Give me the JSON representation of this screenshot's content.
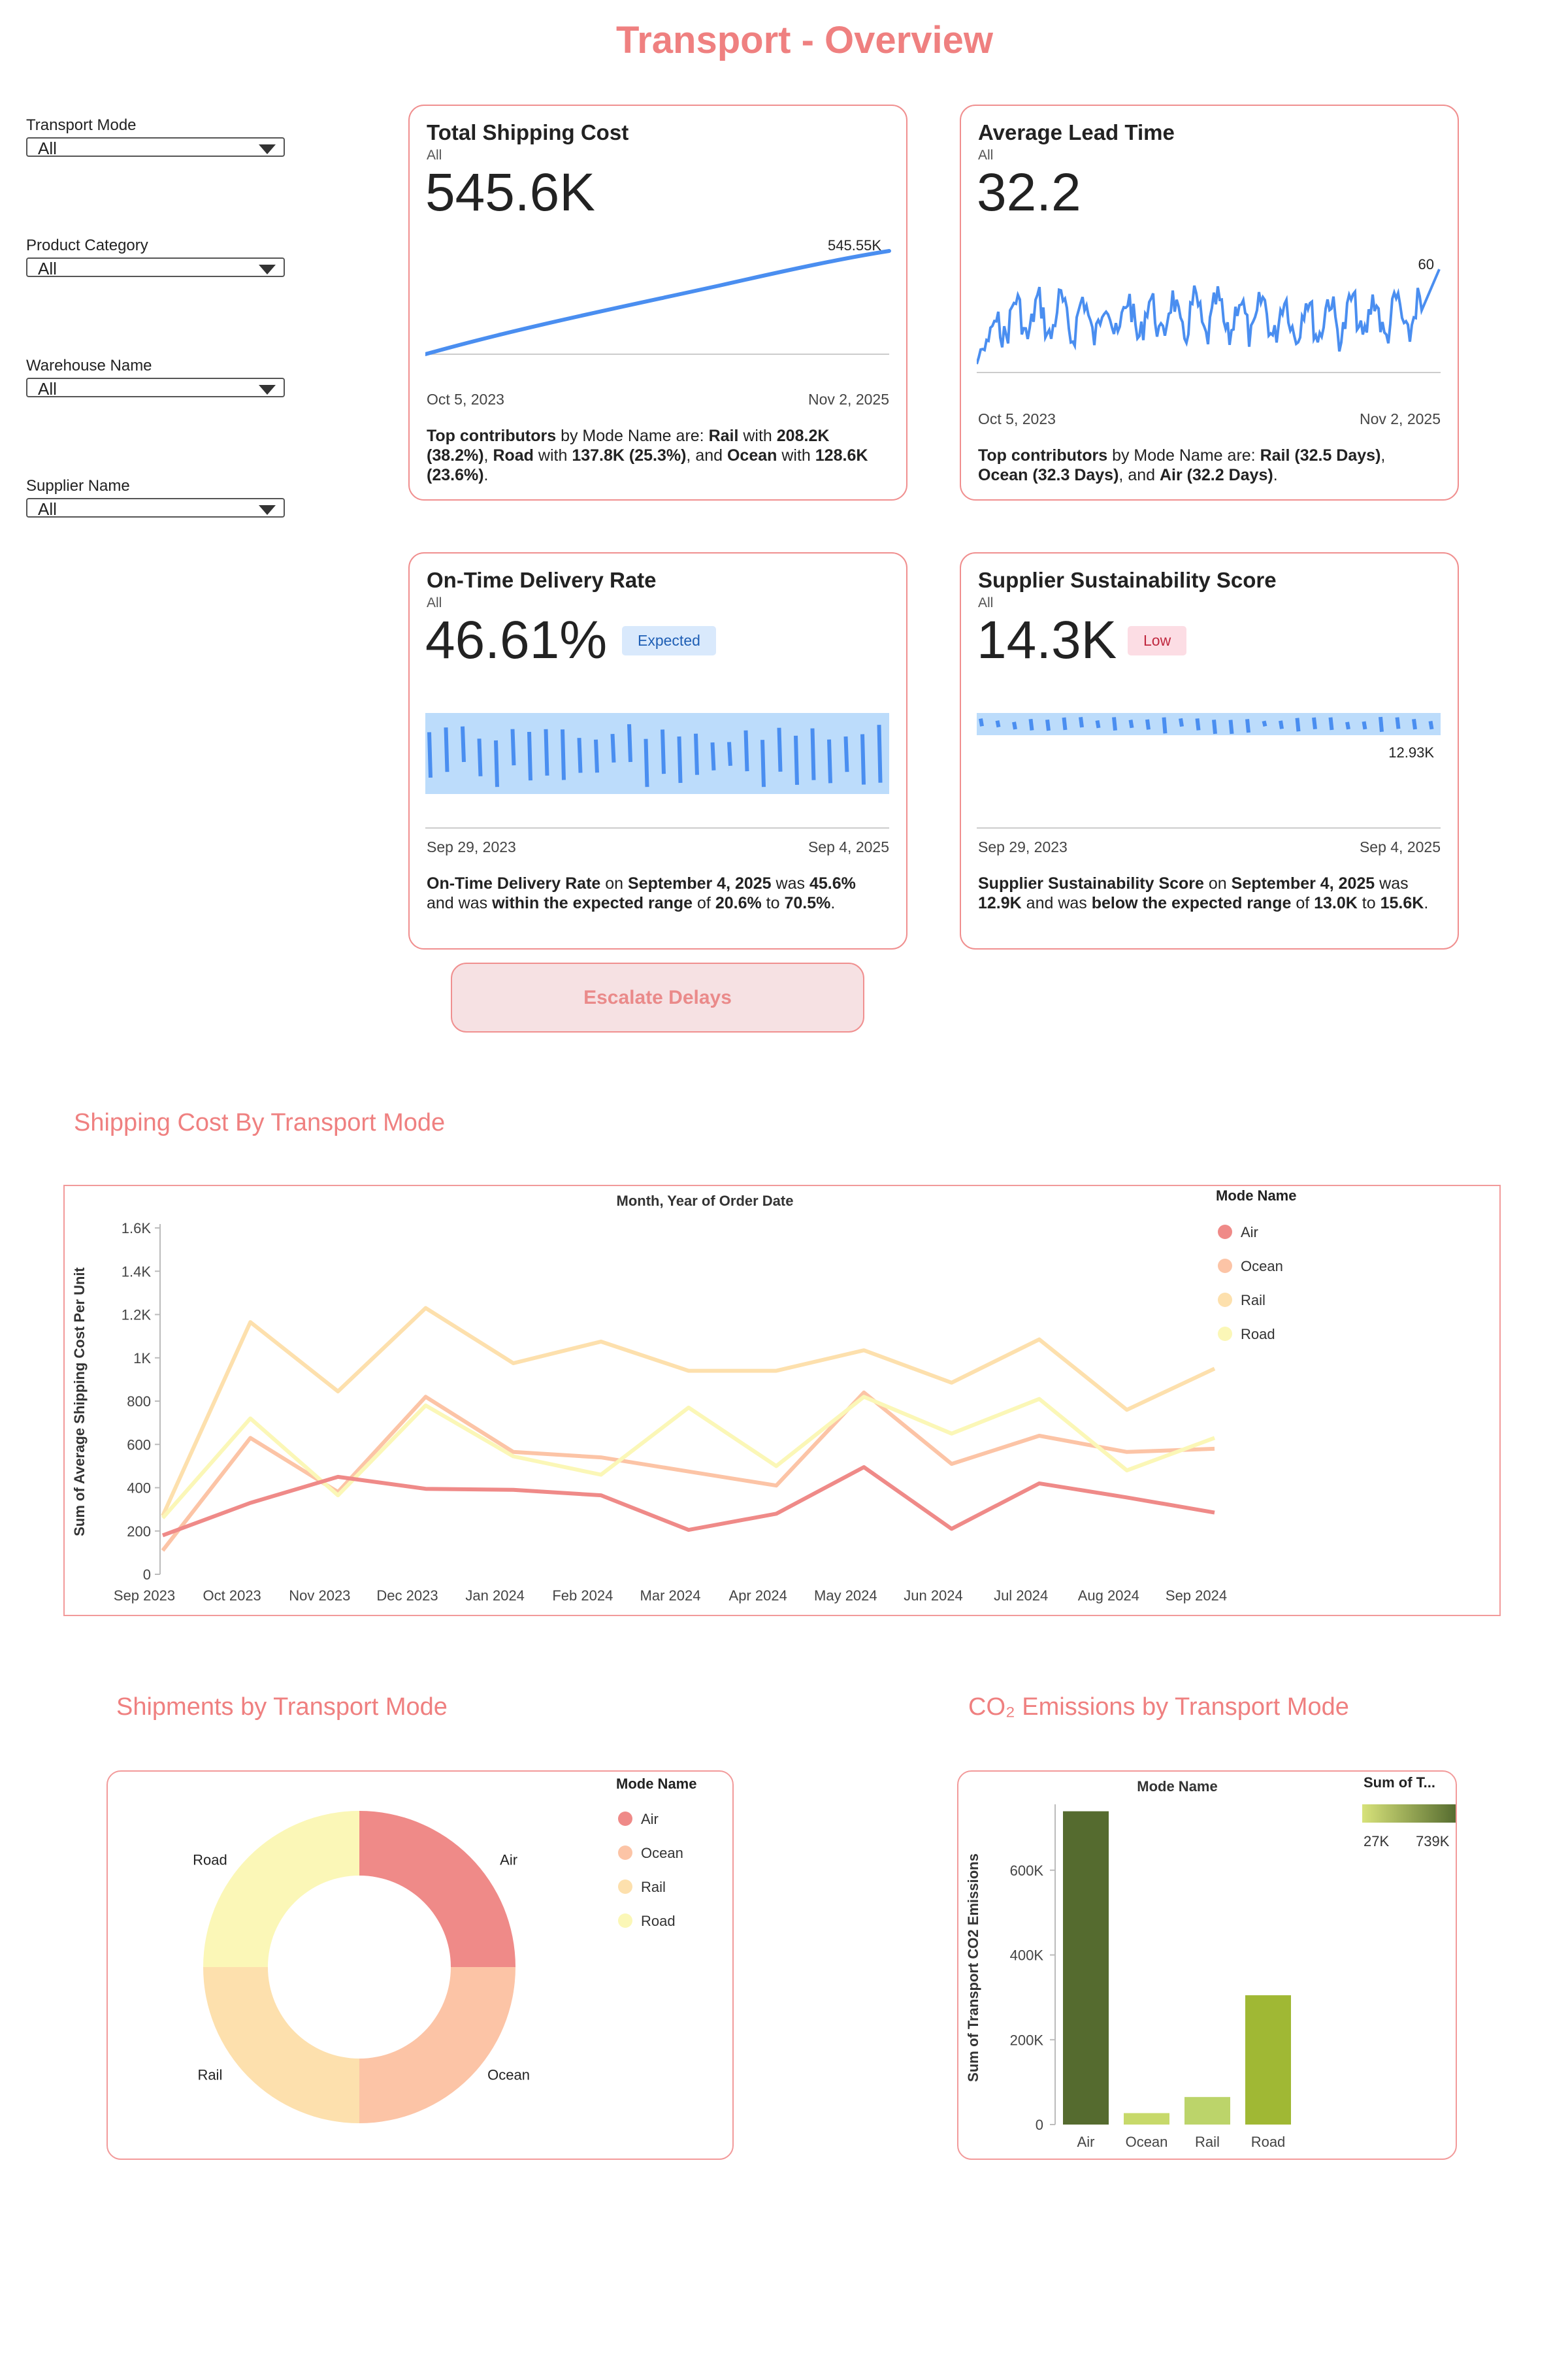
{
  "page": {
    "title": "Transport - Overview"
  },
  "colors": {
    "accent": "#ef8080",
    "air": "#ef8a88",
    "ocean": "#fcc4a6",
    "rail": "#fde0ad",
    "road": "#fbf7b7",
    "line_blue": "#4a8ef0",
    "band_blue": "#bcdcfb"
  },
  "filters": [
    {
      "label": "Transport Mode",
      "value": "All"
    },
    {
      "label": "Product Category",
      "value": "All"
    },
    {
      "label": "Warehouse Name",
      "value": "All"
    },
    {
      "label": "Supplier Name",
      "value": "All"
    }
  ],
  "kpis": {
    "total_shipping_cost": {
      "title": "Total Shipping Cost",
      "subtitle": "All",
      "value": "545.6K",
      "end_label": "545.55K",
      "date_start": "Oct 5, 2023",
      "date_end": "Nov 2, 2025",
      "desc": {
        "b1": "Top contributors",
        "t1": " by Mode Name are: ",
        "b2": "Rail",
        "t2": " with ",
        "b3": "208.2K (38.2%)",
        "t3": ", ",
        "b4": "Road",
        "t4": " with ",
        "b5": "137.8K (25.3%)",
        "t5": ", and ",
        "b6": "Ocean",
        "t6": " with ",
        "b7": "128.6K (23.6%)",
        "t7": "."
      }
    },
    "average_lead_time": {
      "title": "Average Lead Time",
      "subtitle": "All",
      "value": "32.2",
      "end_label": "60",
      "date_start": "Oct 5, 2023",
      "date_end": "Nov 2, 2025",
      "desc": {
        "b1": "Top contributors",
        "t1": " by Mode Name are: ",
        "b2": "Rail",
        "t2": " ",
        "b3": "(32.5 Days)",
        "t3": ", ",
        "b4": "Ocean",
        "t4": " ",
        "b5": "(32.3 Days)",
        "t5": ", and ",
        "b6": "Air",
        "t6": " ",
        "b7": "(32.2 Days)",
        "t7": "."
      }
    },
    "on_time_delivery": {
      "title": "On-Time Delivery Rate",
      "subtitle": "All",
      "value": "46.61%",
      "badge": "Expected",
      "date_start": "Sep 29, 2023",
      "date_end": "Sep 4, 2025",
      "desc": {
        "b1": "On-Time Delivery Rate",
        "t1": " on ",
        "b2": "September 4, 2025",
        "t2": " was ",
        "b3": "45.6%",
        "t3": " and was ",
        "b4": "within the expected range",
        "t4": " of ",
        "b5": "20.6%",
        "t5": " to ",
        "b6": "70.5%",
        "t6": "."
      }
    },
    "supplier_sustainability": {
      "title": "Supplier Sustainability Score",
      "subtitle": "All",
      "value": "14.3K",
      "badge": "Low",
      "end_label": "12.93K",
      "date_start": "Sep 29, 2023",
      "date_end": "Sep 4, 2025",
      "desc": {
        "b1": "Supplier Sustainability Score",
        "t1": " on ",
        "b2": "September 4, 2025",
        "t2": " was ",
        "b3": "12.9K",
        "t3": " and was ",
        "b4": "below the expected range",
        "t4": " of ",
        "b5": "13.0K",
        "t5": " to ",
        "b6": "15.6K",
        "t6": "."
      }
    }
  },
  "actions": {
    "escalate_label": "Escalate Delays"
  },
  "sections": {
    "shipping_cost": "Shipping Cost By Transport Mode",
    "shipments": "Shipments by Transport Mode",
    "co2": "CO₂ Emissions by Transport Mode"
  },
  "chart_data": [
    {
      "id": "shipping_cost_line",
      "type": "line",
      "title": "Month, Year of Order Date",
      "xlabel": "Month, Year of Order Date",
      "ylabel": "Sum of Average Shipping Cost Per Unit",
      "legend_title": "Mode Name",
      "legend_position": "top-right",
      "ylim": [
        0,
        1600
      ],
      "yticks": [
        0,
        200,
        400,
        600,
        800,
        1000,
        1200,
        1400,
        1600
      ],
      "ytick_labels": [
        "0",
        "200",
        "400",
        "600",
        "800",
        "1K",
        "1.2K",
        "1.4K",
        "1.6K"
      ],
      "categories": [
        "Sep 2023",
        "Oct 2023",
        "Nov 2023",
        "Dec 2023",
        "Jan 2024",
        "Feb 2024",
        "Mar 2024",
        "Apr 2024",
        "May 2024",
        "Jun 2024",
        "Jul 2024",
        "Aug 2024",
        "Sep 2024"
      ],
      "series": [
        {
          "name": "Air",
          "values": [
            180,
            330,
            450,
            395,
            390,
            365,
            205,
            280,
            495,
            210,
            420,
            355,
            285
          ]
        },
        {
          "name": "Ocean",
          "values": [
            110,
            630,
            380,
            820,
            565,
            540,
            475,
            410,
            840,
            510,
            640,
            565,
            580
          ]
        },
        {
          "name": "Rail",
          "values": [
            270,
            1165,
            845,
            1230,
            975,
            1075,
            940,
            940,
            1035,
            885,
            1085,
            760,
            950
          ]
        },
        {
          "name": "Road",
          "values": [
            260,
            720,
            365,
            780,
            545,
            460,
            770,
            500,
            820,
            650,
            810,
            480,
            630
          ]
        }
      ]
    },
    {
      "id": "shipments_donut",
      "type": "pie",
      "legend_title": "Mode Name",
      "legend_position": "top-right",
      "categories": [
        "Air",
        "Ocean",
        "Rail",
        "Road"
      ],
      "values": [
        25,
        25,
        25,
        25
      ]
    },
    {
      "id": "co2_bar",
      "type": "bar",
      "title": "Mode Name",
      "xlabel": "Mode Name",
      "ylabel": "Sum of Transport CO2 Emissions",
      "legend_title": "Sum of T...",
      "legend_min": "27K",
      "legend_max": "739K",
      "ylim": [
        0,
        780000
      ],
      "yticks": [
        0,
        200000,
        400000,
        600000
      ],
      "ytick_labels": [
        "0",
        "200K",
        "400K",
        "600K"
      ],
      "categories": [
        "Air",
        "Ocean",
        "Rail",
        "Road"
      ],
      "values": [
        739000,
        27000,
        65000,
        305000
      ],
      "bar_colors": [
        "#556b2f",
        "#c7d96a",
        "#bcd46a",
        "#a0b834"
      ]
    }
  ]
}
